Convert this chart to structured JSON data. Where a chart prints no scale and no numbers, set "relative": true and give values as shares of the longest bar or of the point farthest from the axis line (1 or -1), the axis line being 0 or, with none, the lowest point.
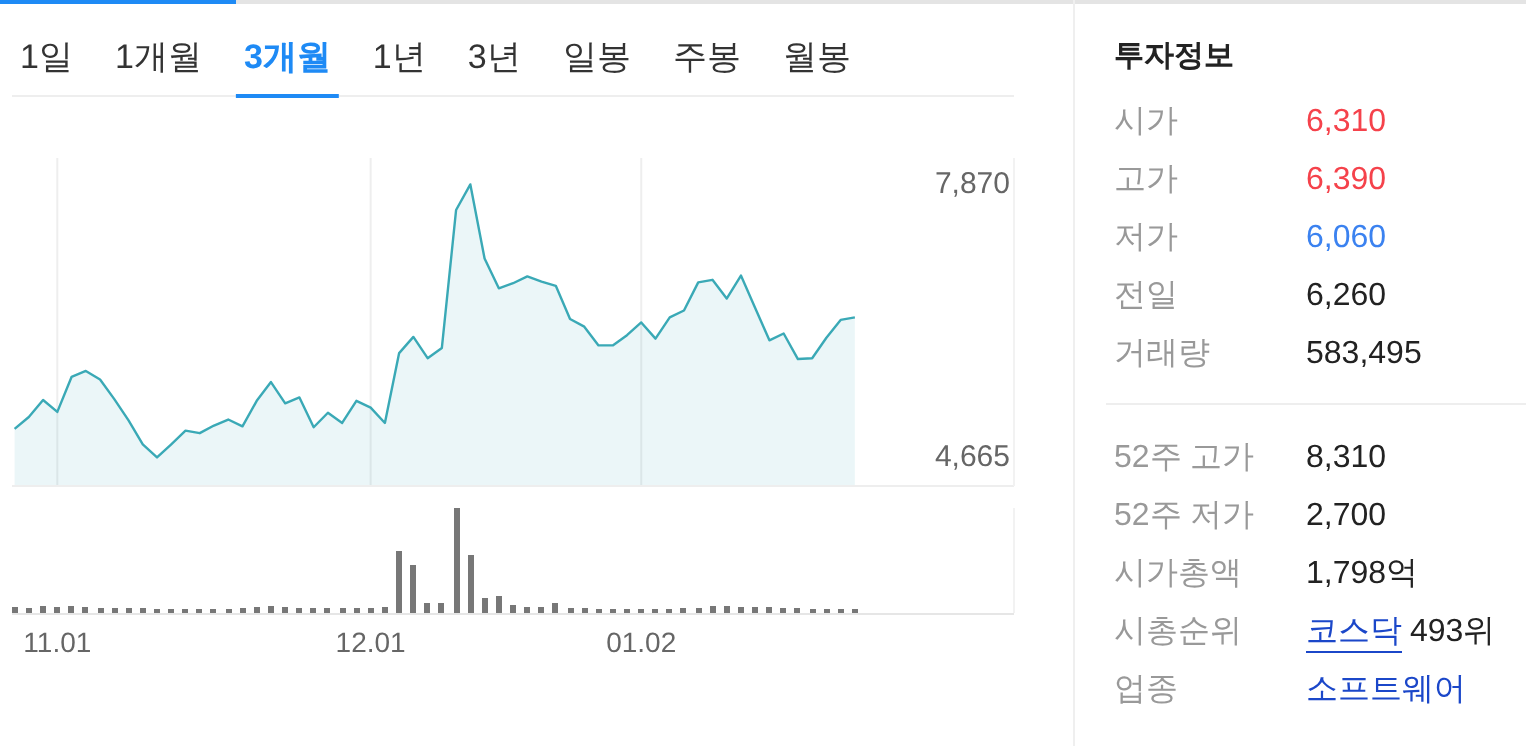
{
  "chart_data": [
    {
      "type": "other",
      "categories": [
        "1일",
        "1개월",
        "3개월",
        "1년",
        "3년",
        "일봉",
        "주봉",
        "월봉"
      ],
      "colors": [
        "#333333",
        "#333333",
        "#1e8af5",
        "#333333",
        "#333333",
        "#333333",
        "#333333",
        "#333333"
      ]
    },
    {
      "type": "area",
      "categories": [
        null,
        null,
        null,
        "11.01",
        null,
        null,
        null,
        null,
        null,
        null,
        null,
        null,
        null,
        null,
        null,
        null,
        null,
        null,
        null,
        null,
        null,
        null,
        null,
        null,
        null,
        "12.01",
        null,
        null,
        null,
        null,
        null,
        null,
        null,
        null,
        null,
        null,
        null,
        null,
        null,
        null,
        null,
        null,
        null,
        null,
        "01.02",
        null,
        null,
        null,
        null,
        null,
        null,
        null,
        null,
        null,
        null,
        null,
        null,
        null,
        null,
        null
      ],
      "values": [
        5000,
        5140,
        5340,
        5200,
        5610,
        5680,
        5580,
        5350,
        5100,
        4820,
        4665,
        4820,
        4980,
        4950,
        5040,
        5110,
        5030,
        5330,
        5550,
        5300,
        5370,
        5020,
        5190,
        5070,
        5330,
        5250,
        5070,
        5890,
        6080,
        5830,
        5950,
        7570,
        7870,
        7000,
        6650,
        6710,
        6790,
        6730,
        6680,
        6290,
        6200,
        5980,
        5980,
        6100,
        6250,
        6060,
        6310,
        6390,
        6720,
        6750,
        6530,
        6800,
        6420,
        6040,
        6120,
        5820,
        5830,
        6070,
        6280,
        6310
      ],
      "color": "#3aa9b6",
      "ylim": [
        4330,
        8180
      ],
      "yticks": [
        {
          "value": 4665,
          "label": "4,665"
        },
        {
          "value": 7870,
          "label": "7,870"
        }
      ],
      "grid": "x",
      "tick_labels": "y"
    },
    {
      "type": "bar",
      "categories": [
        null,
        null,
        null,
        "11.01",
        null,
        null,
        null,
        null,
        null,
        null,
        null,
        null,
        null,
        null,
        null,
        null,
        null,
        null,
        null,
        null,
        null,
        null,
        null,
        null,
        null,
        "12.01",
        null,
        null,
        null,
        null,
        null,
        null,
        null,
        null,
        null,
        null,
        null,
        null,
        null,
        null,
        null,
        null,
        null,
        null,
        "01.02",
        null,
        null,
        null,
        null,
        null,
        null,
        null,
        null,
        null,
        null,
        null,
        null,
        null,
        null,
        null
      ],
      "values": [
        0.06,
        0.05,
        0.07,
        0.06,
        0.07,
        0.06,
        0.05,
        0.05,
        0.05,
        0.05,
        0.04,
        0.04,
        0.04,
        0.04,
        0.04,
        0.04,
        0.05,
        0.06,
        0.07,
        0.06,
        0.05,
        0.05,
        0.05,
        0.05,
        0.05,
        0.05,
        0.06,
        0.59,
        0.46,
        0.1,
        0.1,
        1,
        0.55,
        0.14,
        0.16,
        0.08,
        0.06,
        0.06,
        0.1,
        0.05,
        0.05,
        0.04,
        0.04,
        0.04,
        0.04,
        0.04,
        0.04,
        0.05,
        0.05,
        0.07,
        0.07,
        0.06,
        0.06,
        0.06,
        0.05,
        0.05,
        0.04,
        0.04,
        0.04,
        0.04
      ],
      "color": "#777777",
      "relative": true,
      "tick_labels": "x"
    },
    {
      "type": "other",
      "title": "투자정보",
      "categories": [
        "시가",
        "고가",
        "저가",
        "전일",
        "거래량"
      ],
      "value_labels": [
        "6,310",
        "6,390",
        "6,060",
        "6,260",
        "583,495"
      ],
      "colors": [
        "#f5424b",
        "#f5424b",
        "#3b82f0",
        "#222222",
        "#222222"
      ]
    },
    {
      "type": "other",
      "categories": [
        "52주 고가",
        "52주 저가",
        "시가총액",
        "시총순위",
        "업종"
      ],
      "value_labels": [
        "8,310",
        "2,700",
        "1,798억",
        "코스닥 493위",
        "소프트웨어"
      ],
      "colors": [
        "#222222",
        "#222222",
        "#222222",
        [
          "#1b47c9",
          "#222222"
        ],
        "#1b47c9"
      ]
    }
  ]
}
